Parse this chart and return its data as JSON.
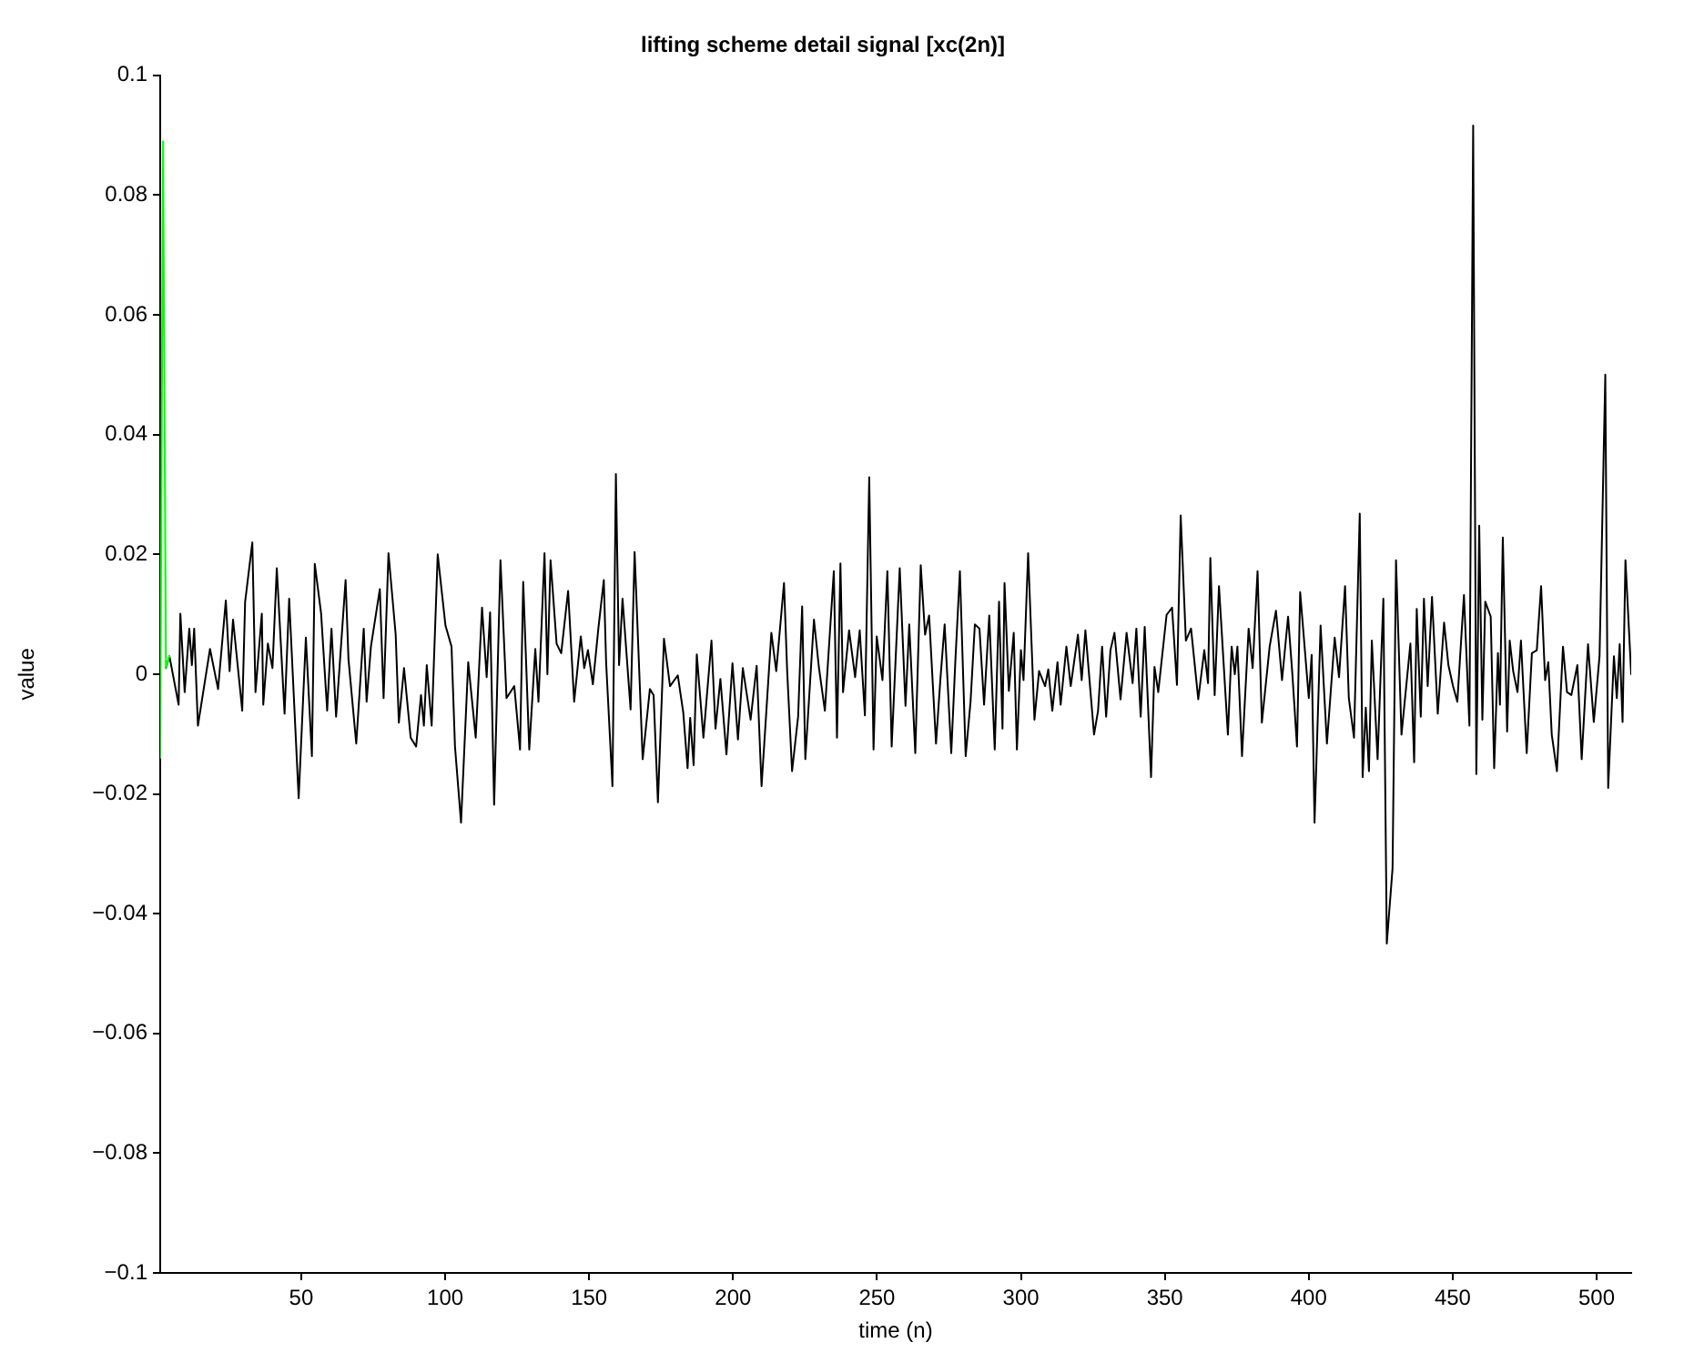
{
  "chart_data": {
    "type": "line",
    "title": "lifting scheme detail signal [xc(2n)]",
    "xlabel": "time (n)",
    "ylabel": "value",
    "xlim": [
      1,
      512
    ],
    "xticks": [
      50,
      100,
      150,
      200,
      250,
      300,
      350,
      400,
      450,
      500
    ],
    "ylim": [
      -0.1,
      0.1
    ],
    "yticks": [
      {
        "value": -0.1,
        "label": "−0.1"
      },
      {
        "value": -0.08,
        "label": "−0.08"
      },
      {
        "value": -0.06,
        "label": "−0.06"
      },
      {
        "value": -0.04,
        "label": "−0.04"
      },
      {
        "value": -0.02,
        "label": "−0.02"
      },
      0,
      0.02,
      0.04,
      0.06,
      0.08,
      0.1
    ],
    "grid": false,
    "legend": false,
    "marker": "none",
    "line_style": "solid",
    "series": [
      {
        "color": "#00ff00",
        "x": [
          1,
          2,
          3,
          4.2
        ],
        "values": [
          -0.014,
          0.089,
          0.001,
          0.003
        ]
      },
      {
        "color": "#000000",
        "x": [
          3,
          4.2,
          7.4,
          8.0,
          9.5,
          11.1,
          12.0,
          12.8,
          14.1,
          18.3,
          21.1,
          23.8,
          25.1,
          26.3,
          29.5,
          30.5,
          33.0,
          34.1,
          36.3,
          36.8,
          38.4,
          40.0,
          41.5,
          44.2,
          45.8,
          49.1,
          51.6,
          53.7,
          54.7,
          56.9,
          59.0,
          60.5,
          62.1,
          65.4,
          66.4,
          69.1,
          71.7,
          72.7,
          74.2,
          77.3,
          78.6,
          80.3,
          82.8,
          83.9,
          85.7,
          88.0,
          89.9,
          91.6,
          92.6,
          93.6,
          95.3,
          97.4,
          100.1,
          102.2,
          103.4,
          105.5,
          108.0,
          110.6,
          112.8,
          114.4,
          115.6,
          117.0,
          119.2,
          121.3,
          124.0,
          126.0,
          127.1,
          129.2,
          131.3,
          132.4,
          134.5,
          135.5,
          136.6,
          138.7,
          140.3,
          142.7,
          144.8,
          147.1,
          148.3,
          149.6,
          151.3,
          153.2,
          155.1,
          155.9,
          158.1,
          159.3,
          160.4,
          161.6,
          164.4,
          165.8,
          168.6,
          171.1,
          172.4,
          173.9,
          176.0,
          178.1,
          180.8,
          182.7,
          184.2,
          185.1,
          186.3,
          187.4,
          189.7,
          192.5,
          193.9,
          195.6,
          197.7,
          199.8,
          201.7,
          203.4,
          206.1,
          208.2,
          209.9,
          213.3,
          215.0,
          217.7,
          218.8,
          220.5,
          222.6,
          224.0,
          225.1,
          228.1,
          229.8,
          231.9,
          235.0,
          236.1,
          237.3,
          238.2,
          240.3,
          242.4,
          244.0,
          245.8,
          247.3,
          248.8,
          249.9,
          251.9,
          253.6,
          255.1,
          257.9,
          259.9,
          261.2,
          263.3,
          265.2,
          266.7,
          268.1,
          270.5,
          272.0,
          273.5,
          275.8,
          277.2,
          278.8,
          280.8,
          282.5,
          284.0,
          285.6,
          287.2,
          289.0,
          290.9,
          292.4,
          293.6,
          294.3,
          295.8,
          297.5,
          298.6,
          300.0,
          300.9,
          302.5,
          304.7,
          306.3,
          308.4,
          309.5,
          310.9,
          312.7,
          313.8,
          315.8,
          317.3,
          319.8,
          321.1,
          322.4,
          325.4,
          326.8,
          328.2,
          329.6,
          331.1,
          332.5,
          334.6,
          336.7,
          338.8,
          340.1,
          341.6,
          343.0,
          345.2,
          346.4,
          347.7,
          350.6,
          352.5,
          354.2,
          355.5,
          357.3,
          359.1,
          361.6,
          363.7,
          365.0,
          365.8,
          367.3,
          368.8,
          371.9,
          373.2,
          374.3,
          375.2,
          376.8,
          379.1,
          380.5,
          382.2,
          383.7,
          386.4,
          388.6,
          390.7,
          392.8,
          394.3,
          395.9,
          397.0,
          400.0,
          401.0,
          402.0,
          404.1,
          406.3,
          409.0,
          410.5,
          412.6,
          413.9,
          415.7,
          417.7,
          418.7,
          419.8,
          420.9,
          421.9,
          423.9,
          425.9,
          427.1,
          429.1,
          430.3,
          432.2,
          435.3,
          436.6,
          437.5,
          438.9,
          440.0,
          441.3,
          442.8,
          444.8,
          447.0,
          448.5,
          450.1,
          451.6,
          453.9,
          455.8,
          457.1,
          458.2,
          459.2,
          460.3,
          461.3,
          463.2,
          464.4,
          465.7,
          466.4,
          467.4,
          468.9,
          469.8,
          471.0,
          472.5,
          473.7,
          475.7,
          477.5,
          479.2,
          480.7,
          482.1,
          483.2,
          484.4,
          486.2,
          488.3,
          489.7,
          491.2,
          493.3,
          494.8,
          497,
          499,
          501,
          503,
          504,
          506,
          507,
          508,
          509,
          510,
          512
        ],
        "values": [
          0.001,
          0.003,
          -0.0051,
          0.0101,
          -0.003,
          0.0076,
          0.0015,
          0.0076,
          -0.0086,
          0.0042,
          -0.0025,
          0.0123,
          0.0005,
          0.0091,
          -0.0061,
          0.0121,
          0.022,
          -0.003,
          0.0101,
          -0.0051,
          0.0051,
          0.001,
          0.0177,
          -0.0066,
          0.0126,
          -0.0207,
          0.0061,
          -0.0137,
          0.0184,
          0.0101,
          -0.0061,
          0.0076,
          -0.0071,
          0.0157,
          0.0025,
          -0.0116,
          0.0076,
          -0.0046,
          0.0046,
          0.0142,
          -0.004,
          0.0202,
          0.0066,
          -0.0081,
          0.001,
          -0.0106,
          -0.0121,
          -0.0035,
          -0.0086,
          0.0015,
          -0.0086,
          0.02,
          0.0081,
          0.0046,
          -0.0121,
          -0.0248,
          0.002,
          -0.0106,
          0.0111,
          -0.0005,
          0.0103,
          -0.0218,
          0.019,
          -0.004,
          -0.002,
          -0.0126,
          0.0154,
          -0.0126,
          0.0042,
          -0.0046,
          0.0202,
          0,
          0.019,
          0.0051,
          0.0035,
          0.0139,
          -0.0046,
          0.0063,
          0.001,
          0.004,
          -0.0017,
          0.0076,
          0.0157,
          0.002,
          -0.0187,
          0.0334,
          0.0015,
          0.0126,
          -0.0059,
          0.0204,
          -0.0142,
          -0.0025,
          -0.0035,
          -0.0214,
          0.0059,
          -0.002,
          -0.0002,
          -0.0064,
          -0.0157,
          -0.0073,
          -0.0152,
          0.0033,
          -0.0106,
          0.0056,
          -0.0091,
          -0.0008,
          -0.0134,
          0.0018,
          -0.0109,
          0.001,
          -0.0076,
          0.0014,
          -0.0187,
          0.0069,
          0.0005,
          0.0152,
          0.0005,
          -0.0162,
          -0.0071,
          0.0113,
          -0.0142,
          0.0091,
          0.0012,
          -0.0061,
          0.0172,
          -0.0106,
          0.0185,
          -0.003,
          0.0073,
          -0.0005,
          0.0073,
          -0.0069,
          0.0329,
          -0.0126,
          0.0063,
          -0.001,
          0.0172,
          -0.0121,
          0.0177,
          -0.0053,
          0.0083,
          -0.0132,
          0.0182,
          0.0066,
          0.0098,
          -0.0116,
          -0.001,
          0.0083,
          -0.0132,
          0.002,
          0.0172,
          -0.0137,
          -0.0046,
          0.0083,
          0.0076,
          -0.0051,
          0.0098,
          -0.0126,
          0.0121,
          -0.0091,
          0.0152,
          -0.0028,
          0.0069,
          -0.0126,
          0.004,
          -0.001,
          0.0202,
          -0.0076,
          0.0005,
          -0.002,
          0.0008,
          -0.0061,
          0.002,
          -0.0051,
          0.0046,
          -0.002,
          0.0066,
          -0.001,
          0.0073,
          -0.0101,
          -0.0061,
          0.0046,
          -0.0071,
          0.004,
          0.0069,
          -0.0042,
          0.0069,
          -0.0015,
          0.0076,
          -0.0071,
          0.0079,
          -0.0172,
          0.0012,
          -0.003,
          0.0099,
          0.0111,
          -0.0018,
          0.0265,
          0.0056,
          0.0076,
          -0.0042,
          0.004,
          -0.0015,
          0.0194,
          -0.0035,
          0.0147,
          -0.0101,
          0.0046,
          0,
          0.0046,
          -0.0137,
          0.0076,
          0.001,
          0.0172,
          -0.0081,
          0.0046,
          0.0106,
          -0.001,
          0.0096,
          0,
          -0.0121,
          0.0137,
          -0.004,
          0.0032,
          -0.0248,
          0.0081,
          -0.0116,
          0.0061,
          -0.0005,
          0.0147,
          -0.004,
          -0.0106,
          0.0268,
          -0.0172,
          -0.0056,
          -0.0162,
          0.0056,
          -0.0142,
          0.0126,
          -0.045,
          -0.0324,
          0.019,
          -0.0101,
          0.0051,
          -0.0147,
          0.0109,
          -0.0071,
          0.0126,
          -0.002,
          0.0129,
          -0.0066,
          0.0086,
          0.0015,
          -0.002,
          -0.0046,
          0.0132,
          -0.0086,
          0.0916,
          -0.0167,
          0.0248,
          -0.0076,
          0.0121,
          0.0096,
          -0.0157,
          0.0035,
          -0.0051,
          0.0228,
          -0.0096,
          0.0056,
          0.0005,
          -0.003,
          0.0056,
          -0.0132,
          0.0035,
          0.004,
          0.0147,
          -0.001,
          0.002,
          -0.0101,
          -0.0162,
          0.0046,
          -0.003,
          -0.0035,
          0.0015,
          -0.0142,
          0.005,
          -0.008,
          0.003,
          0.05,
          -0.019,
          0.003,
          -0.004,
          0.005,
          -0.008,
          0.019,
          0
        ]
      }
    ]
  }
}
